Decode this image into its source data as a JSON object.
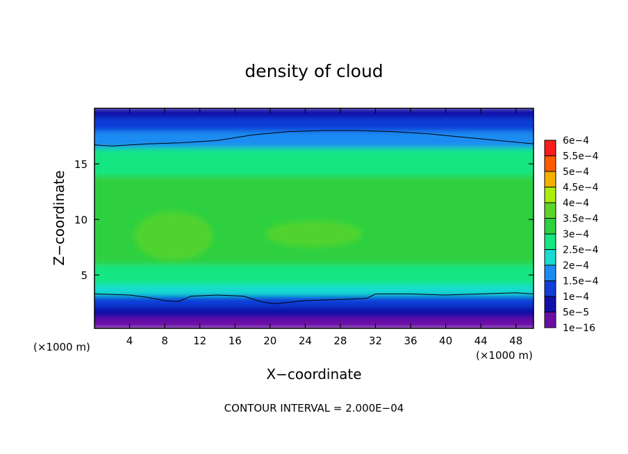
{
  "chart_data": {
    "type": "heatmap",
    "title": "density of cloud",
    "xlabel": "X−coordinate",
    "ylabel": "Z−coordinate",
    "x_unit_label": "(×1000 m)",
    "y_unit_label": "(×1000 m)",
    "xlim": [
      0,
      50
    ],
    "ylim": [
      0.2,
      20
    ],
    "x_ticks": [
      4,
      8,
      12,
      16,
      20,
      24,
      28,
      32,
      36,
      40,
      44,
      48
    ],
    "y_ticks": [
      5,
      10,
      15
    ],
    "footer": "CONTOUR INTERVAL = 2.000E−04",
    "colorbar": {
      "levels": [
        {
          "label": "1e−16",
          "value": 0,
          "color": "#6a0fa6"
        },
        {
          "label": "5e−5",
          "value": 5e-05,
          "color": "#1010a8"
        },
        {
          "label": "1e−4",
          "value": 0.0001,
          "color": "#0f3ed8"
        },
        {
          "label": "1.5e−4",
          "value": 0.00015,
          "color": "#1b8cf2"
        },
        {
          "label": "2e−4",
          "value": 0.0002,
          "color": "#18dcd0"
        },
        {
          "label": "2.5e−4",
          "value": 0.00025,
          "color": "#14e682"
        },
        {
          "label": "3e−4",
          "value": 0.0003,
          "color": "#2ed040"
        },
        {
          "label": "3.5e−4",
          "value": 0.00035,
          "color": "#5cd52a"
        },
        {
          "label": "4e−4",
          "value": 0.0004,
          "color": "#aaee10"
        },
        {
          "label": "4.5e−4",
          "value": 0.00045,
          "color": "#f4b000"
        },
        {
          "label": "5e−4",
          "value": 0.0005,
          "color": "#ff5a00"
        },
        {
          "label": "5.5e−4",
          "value": 0.00055,
          "color": "#f81c1c"
        },
        {
          "label": "6e−4",
          "value": 0.0006,
          "color": "#f49090"
        }
      ]
    },
    "bands": [
      {
        "z_bottom": 0.2,
        "z_top": 1.2,
        "value": 5e-06
      },
      {
        "z_bottom": 1.2,
        "z_top": 2.2,
        "value": 6e-05
      },
      {
        "z_bottom": 2.2,
        "z_top": 3.2,
        "value": 0.00013
      },
      {
        "z_bottom": 3.2,
        "z_top": 4.2,
        "value": 0.00022
      },
      {
        "z_bottom": 4.2,
        "z_top": 6.0,
        "value": 0.00029
      },
      {
        "z_bottom": 6.0,
        "z_top": 10.5,
        "value": 0.00034
      },
      {
        "z_bottom": 10.5,
        "z_top": 14.0,
        "value": 0.00031
      },
      {
        "z_bottom": 14.0,
        "z_top": 16.5,
        "value": 0.00026
      },
      {
        "z_bottom": 16.5,
        "z_top": 18.0,
        "value": 0.00019
      },
      {
        "z_bottom": 18.0,
        "z_top": 19.2,
        "value": 0.00012
      },
      {
        "z_bottom": 19.2,
        "z_top": 20.0,
        "value": 8e-05
      }
    ],
    "highlights": [
      {
        "x_center": 9,
        "z_center": 8.5,
        "x_halfwidth": 4.5,
        "z_halfheight": 2.2,
        "value": 0.00038
      },
      {
        "x_center": 25,
        "z_center": 8.7,
        "x_halfwidth": 5.5,
        "z_halfheight": 1.2,
        "value": 0.00037
      }
    ],
    "contours": [
      {
        "level": 0.0002,
        "x": [
          0,
          2,
          6,
          10,
          14,
          18,
          22,
          26,
          30,
          34,
          38,
          42,
          46,
          50
        ],
        "z": [
          16.7,
          16.6,
          16.8,
          16.9,
          17.1,
          17.6,
          17.9,
          18.0,
          18.0,
          17.9,
          17.7,
          17.4,
          17.1,
          16.8
        ]
      },
      {
        "level": 0.0002,
        "x": [
          0,
          4,
          6,
          8,
          9.5,
          11,
          14,
          17,
          19,
          20.5,
          24,
          28,
          31,
          32,
          36,
          40,
          44,
          48,
          50
        ],
        "z": [
          3.3,
          3.2,
          3.0,
          2.7,
          2.6,
          3.1,
          3.2,
          3.1,
          2.6,
          2.4,
          2.7,
          2.8,
          2.9,
          3.3,
          3.3,
          3.2,
          3.3,
          3.4,
          3.3
        ]
      }
    ]
  }
}
